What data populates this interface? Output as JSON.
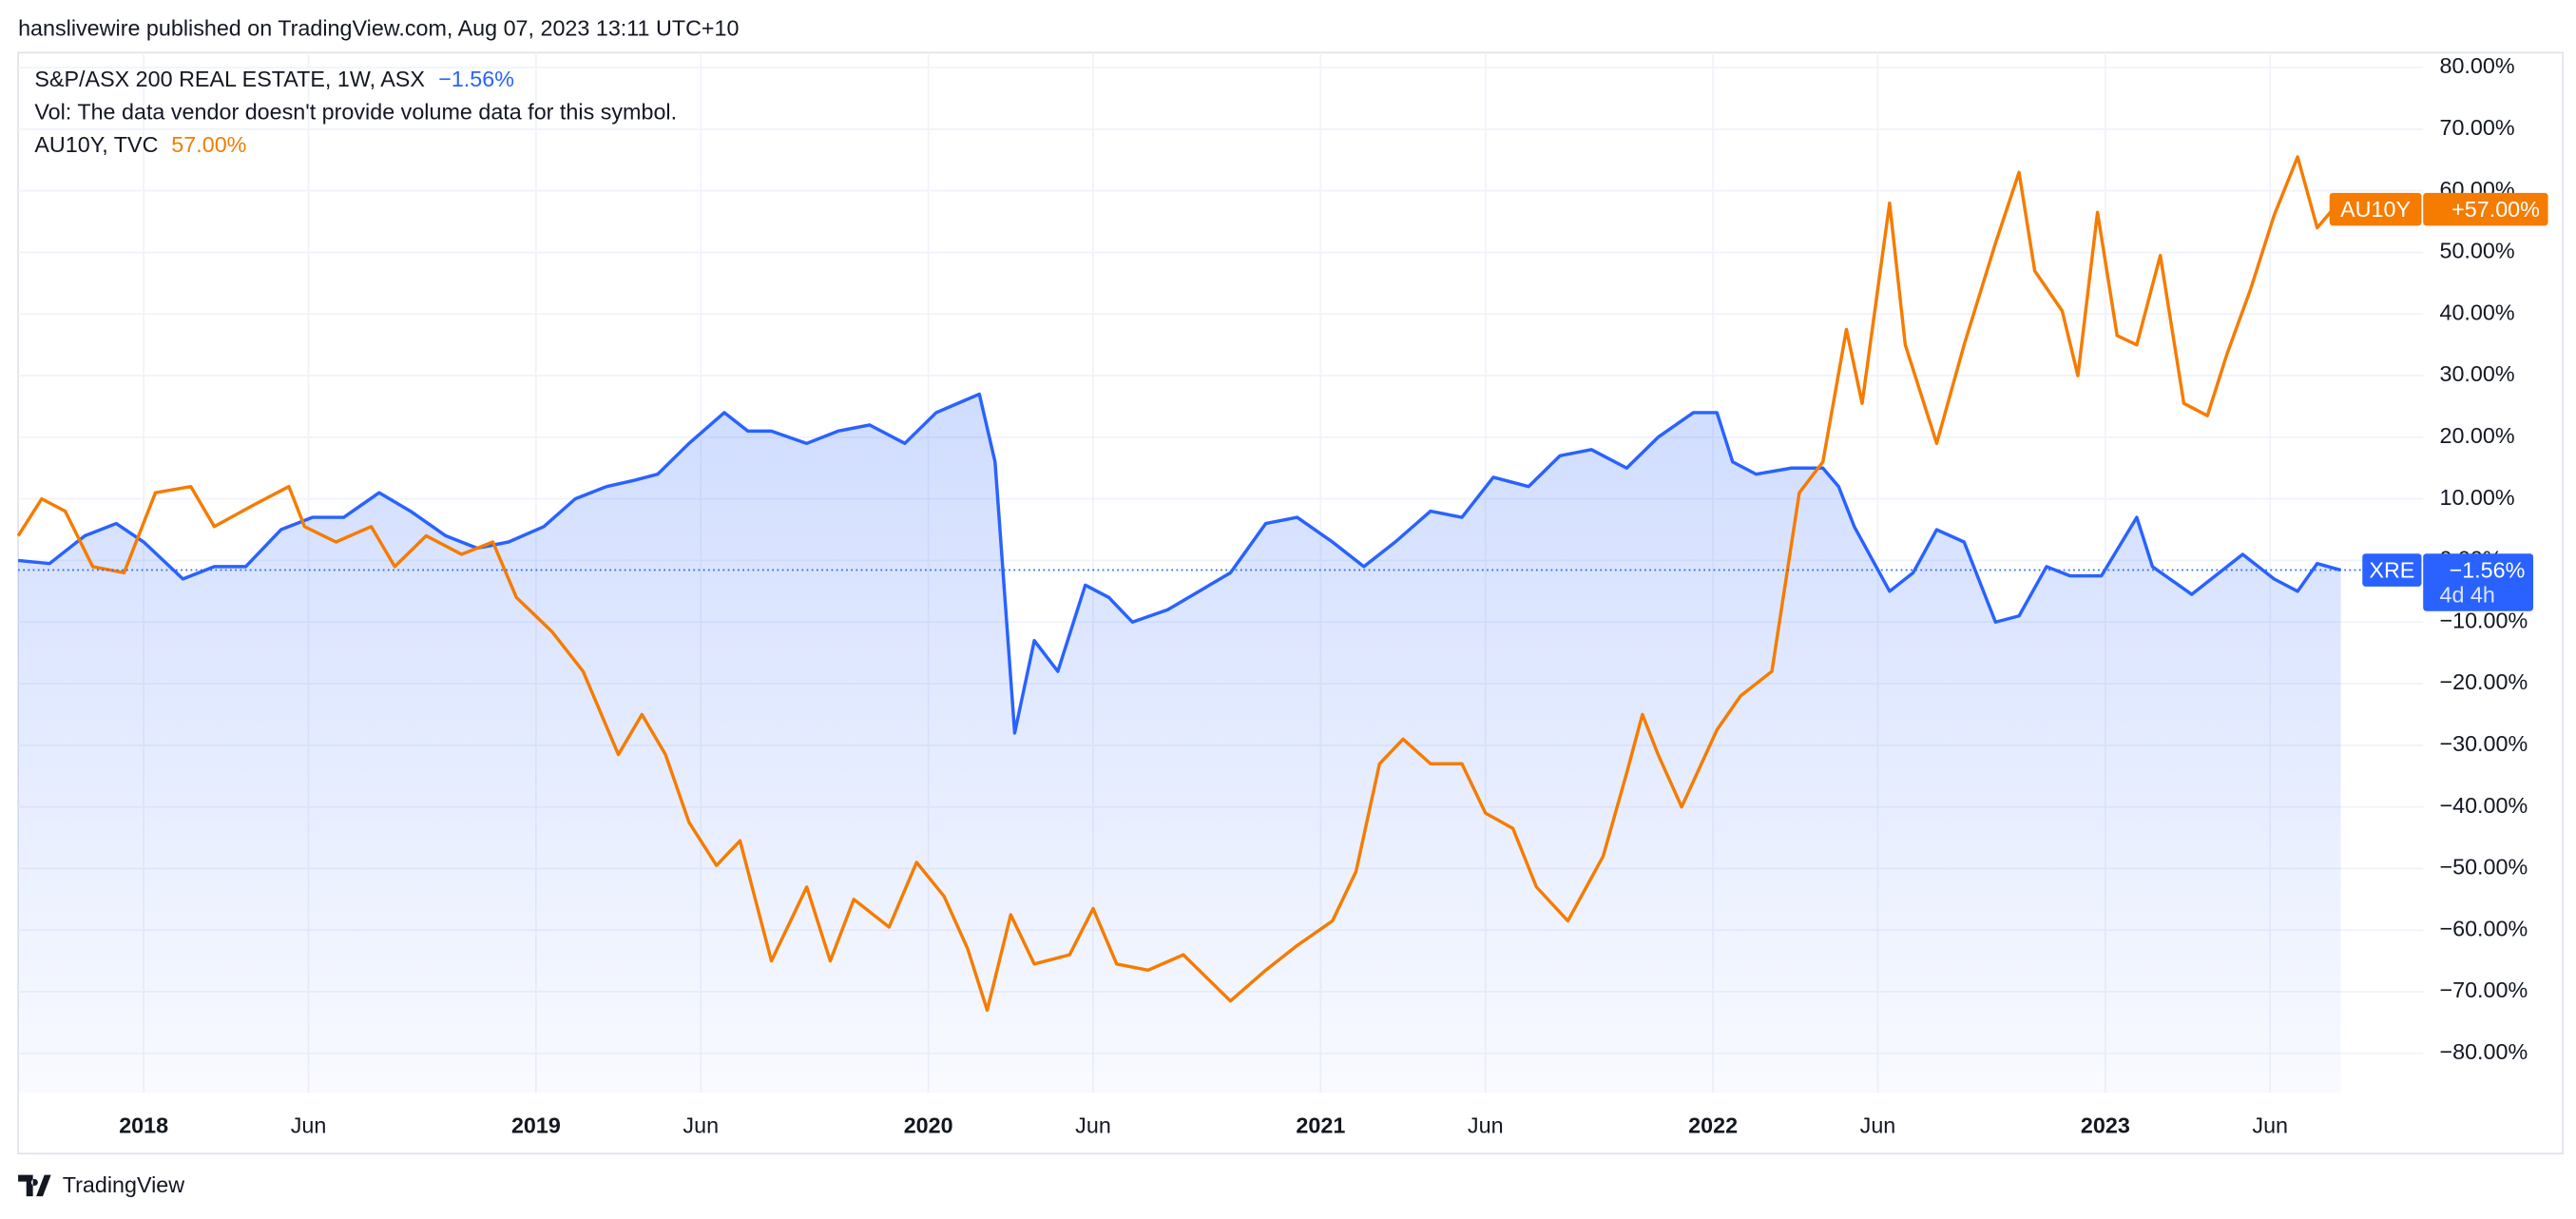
{
  "chart_data": {
    "type": "line",
    "header": "hanslivewire published on TradingView.com, Aug 07, 2023 13:11 UTC+10",
    "volume_note": "Vol: The data vendor doesn't provide volume data for this symbol.",
    "footer_brand": "TradingView",
    "xlim": [
      2017.68,
      2023.81
    ],
    "ylim": [
      -86.4,
      80.3
    ],
    "grid": true,
    "xticks": [
      2018,
      {
        "value": 2018.42,
        "label": "Jun"
      },
      2019,
      {
        "value": 2019.42,
        "label": "Jun"
      },
      2020,
      {
        "value": 2020.42,
        "label": "Jun"
      },
      2021,
      {
        "value": 2021.42,
        "label": "Jun"
      },
      2022,
      {
        "value": 2022.42,
        "label": "Jun"
      },
      2023,
      {
        "value": 2023.42,
        "label": "Jun"
      }
    ],
    "yticks": [
      {
        "value": -80,
        "label": "−80.00%"
      },
      {
        "value": -70,
        "label": "−70.00%"
      },
      {
        "value": -60,
        "label": "−60.00%"
      },
      {
        "value": -50,
        "label": "−50.00%"
      },
      {
        "value": -40,
        "label": "−40.00%"
      },
      {
        "value": -30,
        "label": "−30.00%"
      },
      {
        "value": -20,
        "label": "−20.00%"
      },
      {
        "value": -10,
        "label": "−10.00%"
      },
      {
        "value": 0,
        "label": "0.00%"
      },
      {
        "value": 10,
        "label": "10.00%"
      },
      {
        "value": 20,
        "label": "20.00%"
      },
      {
        "value": 30,
        "label": "30.00%"
      },
      {
        "value": 40,
        "label": "40.00%"
      },
      {
        "value": 50,
        "label": "50.00%"
      },
      {
        "value": 60,
        "label": "60.00%"
      },
      {
        "value": 70,
        "label": "70.00%"
      },
      {
        "value": 80,
        "label": "80.00%"
      }
    ],
    "series": [
      {
        "name": "S&P/ASX 200 REAL ESTATE, 1W, ASX",
        "short_name": "XRE",
        "legend_value": "−1.56%",
        "price_label": "−1.56%",
        "countdown": "4d 4h",
        "color": "#2962ff",
        "area": true,
        "x": [
          2017.68,
          2017.76,
          2017.85,
          2017.93,
          2018.0,
          2018.1,
          2018.18,
          2018.26,
          2018.35,
          2018.43,
          2018.51,
          2018.6,
          2018.68,
          2018.77,
          2018.85,
          2018.93,
          2019.02,
          2019.1,
          2019.18,
          2019.25,
          2019.31,
          2019.39,
          2019.48,
          2019.54,
          2019.6,
          2019.69,
          2019.77,
          2019.85,
          2019.94,
          2020.02,
          2020.13,
          2020.17,
          2020.22,
          2020.27,
          2020.33,
          2020.4,
          2020.46,
          2020.52,
          2020.61,
          2020.69,
          2020.77,
          2020.86,
          2020.94,
          2021.03,
          2021.11,
          2021.19,
          2021.28,
          2021.36,
          2021.44,
          2021.53,
          2021.61,
          2021.69,
          2021.78,
          2021.86,
          2021.95,
          2022.01,
          2022.05,
          2022.11,
          2022.2,
          2022.28,
          2022.32,
          2022.36,
          2022.45,
          2022.51,
          2022.57,
          2022.64,
          2022.72,
          2022.78,
          2022.85,
          2022.91,
          2022.99,
          2023.08,
          2023.12,
          2023.22,
          2023.26,
          2023.35,
          2023.43,
          2023.49,
          2023.54,
          2023.6
        ],
        "values": [
          0,
          -0.5,
          4,
          6,
          3,
          -3,
          -1,
          -1,
          5,
          7,
          7,
          11,
          8,
          4,
          2,
          3,
          5.5,
          10,
          12,
          13,
          14,
          19,
          24,
          21,
          21,
          19,
          21,
          22,
          19,
          24,
          27,
          16,
          -28,
          -13,
          -18,
          -4,
          -6,
          -10,
          -8,
          -5,
          -2,
          6,
          7,
          3,
          -1,
          3,
          8,
          7,
          13.5,
          12,
          17,
          18,
          15,
          20,
          24,
          24,
          16,
          14,
          15,
          15,
          12,
          5.5,
          -5,
          -2,
          5,
          3,
          -10,
          -9,
          -1,
          -2.5,
          -2.5,
          7,
          -1,
          -5.5,
          -3.5,
          1,
          -3,
          -5,
          -0.5,
          -1.56
        ]
      },
      {
        "name": "AU10Y, TVC",
        "short_name": "AU10Y",
        "legend_value": "57.00%",
        "price_label": "+57.00%",
        "color": "#f57c00",
        "area": false,
        "x": [
          2017.68,
          2017.74,
          2017.8,
          2017.87,
          2017.95,
          2018.03,
          2018.12,
          2018.18,
          2018.28,
          2018.37,
          2018.41,
          2018.49,
          2018.58,
          2018.64,
          2018.72,
          2018.81,
          2018.89,
          2018.95,
          2019.04,
          2019.12,
          2019.21,
          2019.27,
          2019.33,
          2019.39,
          2019.46,
          2019.52,
          2019.6,
          2019.69,
          2019.75,
          2019.81,
          2019.9,
          2019.97,
          2020.04,
          2020.1,
          2020.15,
          2020.21,
          2020.27,
          2020.36,
          2020.42,
          2020.48,
          2020.56,
          2020.65,
          2020.77,
          2020.86,
          2020.94,
          2021.03,
          2021.09,
          2021.15,
          2021.21,
          2021.28,
          2021.36,
          2021.42,
          2021.49,
          2021.55,
          2021.63,
          2021.72,
          2021.78,
          2021.82,
          2021.86,
          2021.92,
          2022.01,
          2022.07,
          2022.15,
          2022.22,
          2022.28,
          2022.34,
          2022.38,
          2022.45,
          2022.49,
          2022.57,
          2022.64,
          2022.72,
          2022.78,
          2022.82,
          2022.89,
          2022.93,
          2022.98,
          2023.03,
          2023.08,
          2023.14,
          2023.2,
          2023.26,
          2023.31,
          2023.37,
          2023.43,
          2023.49,
          2023.54,
          2023.58
        ],
        "values": [
          4,
          10,
          8,
          -1,
          -2,
          11,
          12,
          5.5,
          9,
          12,
          5.5,
          3,
          5.5,
          -1,
          4,
          1,
          3,
          -6,
          -11.5,
          -18,
          -31.5,
          -25,
          -31.5,
          -42.5,
          -49.5,
          -45.5,
          -65,
          -53,
          -65,
          -55,
          -59.5,
          -49,
          -54.5,
          -63,
          -73,
          -57.5,
          -65.5,
          -64,
          -56.5,
          -65.5,
          -66.5,
          -64,
          -71.5,
          -66.5,
          -62.5,
          -58.5,
          -50.5,
          -33,
          -29,
          -33,
          -33,
          -41,
          -43.5,
          -53,
          -58.5,
          -48,
          -34.5,
          -25,
          -31.5,
          -40,
          -27.5,
          -22,
          -18,
          11,
          16,
          37.5,
          25.5,
          58,
          35,
          19,
          35,
          51.5,
          63,
          47,
          40.5,
          30,
          56.5,
          36.5,
          35,
          49.5,
          25.5,
          23.5,
          33.5,
          44,
          56,
          65.5,
          54,
          57
        ]
      }
    ]
  }
}
